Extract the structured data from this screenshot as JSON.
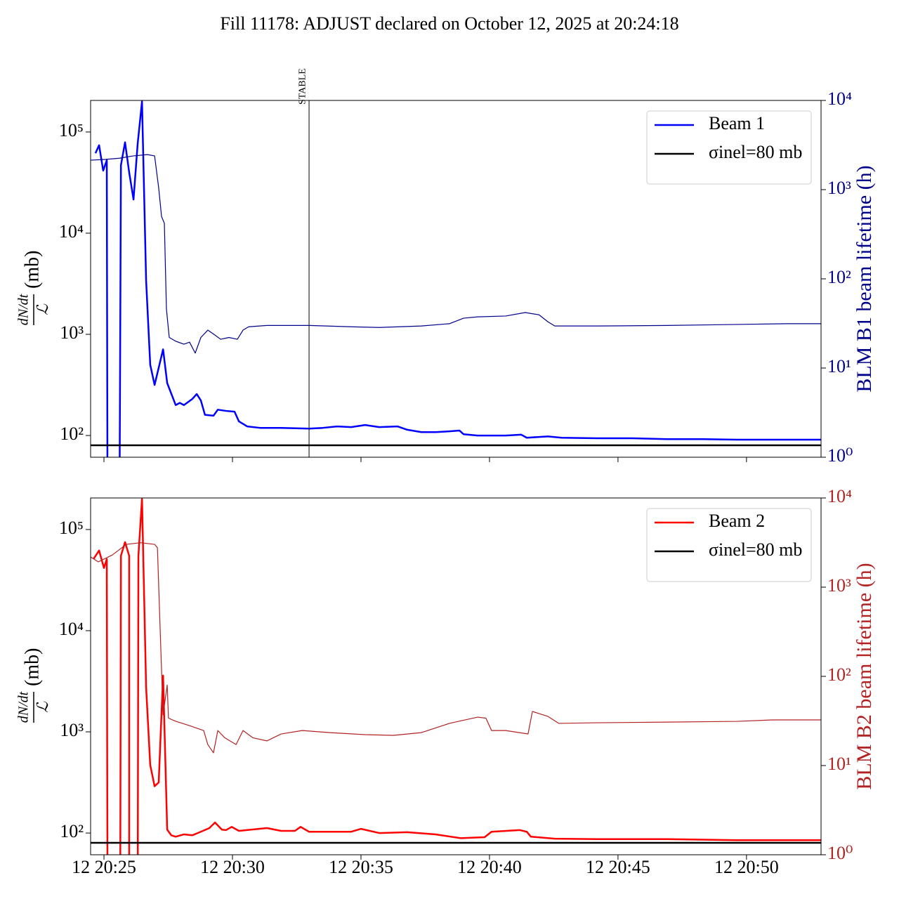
{
  "title": "Fill 11178: ADJUST declared on October 12, 2025 at 20:24:18",
  "chart_data": [
    {
      "type": "line",
      "ylabel": {
        "numerator": "dN/dt",
        "denominator": "ℒ",
        "unit": "(mb)"
      },
      "y2label": "BLM B1 beam lifetime (h)",
      "y2color": "#00008b",
      "xlim": [
        24.48,
        52.9
      ],
      "xticks": [
        25,
        30,
        35,
        40,
        45,
        50
      ],
      "xticklabels": false,
      "ylim": [
        61,
        205000
      ],
      "ylog": true,
      "yticks": [
        {
          "value": 100,
          "label": "10²"
        },
        {
          "value": 1000,
          "label": "10³"
        },
        {
          "value": 10000,
          "label": "10⁴"
        },
        {
          "value": 100000,
          "label": "10⁵"
        }
      ],
      "y2lim": [
        1,
        10000
      ],
      "y2log": true,
      "y2ticks": [
        {
          "value": 1,
          "label": "10⁰"
        },
        {
          "value": 10,
          "label": "10¹"
        },
        {
          "value": 100,
          "label": "10²"
        },
        {
          "value": 1000,
          "label": "10³"
        },
        {
          "value": 10000,
          "label": "10⁴"
        }
      ],
      "legend": "upper right",
      "annotations": [
        {
          "text": "STABLE",
          "x": 32.98
        }
      ],
      "reference": {
        "name": "σinel=80 mb",
        "value": 80,
        "color": "#000000"
      },
      "series": [
        {
          "name": "Beam 1",
          "color": "#0000ff",
          "x": [
            24.67,
            24.81,
            24.97,
            25.11,
            25.14,
            25.6,
            25.66,
            25.82,
            25.98,
            26.15,
            26.31,
            26.48,
            26.64,
            26.8,
            26.97,
            27.3,
            27.46,
            27.79,
            27.95,
            28.11,
            28.44,
            28.61,
            28.77,
            28.93,
            29.26,
            29.43,
            29.75,
            30.08,
            30.25,
            30.57,
            31.07,
            31.89,
            32.98,
            33.52,
            34.07,
            34.62,
            35.16,
            35.71,
            36.42,
            36.8,
            37.35,
            37.9,
            38.44,
            38.83,
            38.99,
            39.54,
            40.63,
            41.23,
            41.45,
            42.27,
            42.81,
            44.18,
            45.55,
            46.91,
            48.28,
            49.64,
            51.01,
            52.9
          ],
          "values": [
            61700,
            74000,
            41500,
            52500,
            10,
            10,
            47000,
            79000,
            40000,
            21500,
            76000,
            200000,
            3400,
            500,
            316,
            710,
            330,
            200,
            210,
            200,
            230,
            257,
            222,
            160,
            157,
            180,
            175,
            172,
            138,
            123,
            119,
            119,
            117,
            119,
            123,
            121,
            127,
            121,
            123,
            114,
            108,
            108,
            110,
            112,
            103,
            100,
            100,
            102,
            95,
            98,
            95,
            94,
            94,
            92,
            92,
            91,
            91,
            91
          ]
        },
        {
          "axis": "y2",
          "color": "#00008b",
          "x": [
            24.48,
            25.05,
            25.6,
            26.15,
            26.69,
            26.97,
            27.13,
            27.24,
            27.35,
            27.43,
            27.54,
            27.79,
            28.11,
            28.33,
            28.55,
            28.77,
            29.04,
            29.32,
            29.54,
            29.86,
            30.19,
            30.41,
            30.63,
            31.34,
            32.98,
            34.62,
            35.71,
            37.35,
            38.44,
            38.99,
            39.54,
            40.63,
            41.39,
            41.93,
            42.27,
            42.54,
            44.18,
            46.91,
            49.64,
            51.56,
            52.9
          ],
          "values": [
            2140,
            2180,
            2250,
            2390,
            2470,
            2390,
            1040,
            500,
            420,
            46,
            22,
            20,
            18.5,
            19.5,
            14.7,
            22,
            26.6,
            23.4,
            21,
            22,
            21,
            26.6,
            29,
            30,
            30,
            29,
            28.5,
            29.6,
            31.4,
            36.2,
            37.5,
            38.3,
            41.9,
            39.5,
            33,
            29.6,
            29.6,
            30,
            30.8,
            31.4,
            31.4
          ]
        }
      ]
    },
    {
      "type": "line",
      "ylabel": {
        "numerator": "dN/dt",
        "denominator": "ℒ",
        "unit": "(mb)"
      },
      "y2label": "BLM B2 beam lifetime (h)",
      "y2color": "#b22222",
      "xlim": [
        24.48,
        52.9
      ],
      "xticks": [
        {
          "value": 25,
          "label": "12 20:25"
        },
        {
          "value": 30,
          "label": "12 20:30"
        },
        {
          "value": 35,
          "label": "12 20:35"
        },
        {
          "value": 40,
          "label": "12 20:40"
        },
        {
          "value": 45,
          "label": "12 20:45"
        },
        {
          "value": 50,
          "label": "12 20:50"
        }
      ],
      "xticklabels": true,
      "ylim": [
        61,
        205000
      ],
      "ylog": true,
      "yticks": [
        {
          "value": 100,
          "label": "10²"
        },
        {
          "value": 1000,
          "label": "10³"
        },
        {
          "value": 10000,
          "label": "10⁴"
        },
        {
          "value": 100000,
          "label": "10⁵"
        }
      ],
      "y2lim": [
        1,
        10000
      ],
      "y2log": true,
      "y2ticks": [
        {
          "value": 1,
          "label": "10⁰"
        },
        {
          "value": 10,
          "label": "10¹"
        },
        {
          "value": 100,
          "label": "10²"
        },
        {
          "value": 1000,
          "label": "10³"
        },
        {
          "value": 10000,
          "label": "10⁴"
        }
      ],
      "legend": "upper right",
      "reference": {
        "name": "σinel=80 mb",
        "value": 80,
        "color": "#000000"
      },
      "series": [
        {
          "name": "Beam 2",
          "color": "#ff0000",
          "x": [
            24.59,
            24.81,
            25.0,
            25.11,
            25.14,
            25.63,
            25.66,
            25.82,
            25.98,
            25.98,
            26.31,
            26.34,
            26.48,
            26.64,
            26.8,
            26.97,
            27.13,
            27.3,
            27.46,
            27.62,
            27.79,
            28.11,
            28.44,
            28.77,
            29.1,
            29.32,
            29.59,
            29.75,
            29.97,
            30.25,
            31.34,
            31.89,
            32.43,
            32.65,
            32.98,
            34.62,
            35.0,
            35.71,
            36.8,
            37.9,
            38.88,
            39.81,
            40.08,
            41.17,
            41.45,
            41.61,
            42.54,
            44.18,
            46.91,
            49.64,
            52.9
          ],
          "values": [
            51000,
            62000,
            41700,
            51000,
            10,
            10,
            55000,
            75000,
            55000,
            10,
            10,
            55000,
            200000,
            2750,
            470,
            290,
            316,
            3600,
            108,
            95,
            92,
            97,
            95,
            103,
            112,
            127,
            108,
            107,
            115,
            105,
            112,
            105,
            105,
            115,
            103,
            103,
            110,
            100,
            102,
            97,
            89,
            91,
            103,
            107,
            103,
            92,
            88,
            87,
            87,
            85,
            85
          ]
        },
        {
          "axis": "y2",
          "color": "#b22222",
          "x": [
            24.48,
            24.78,
            25.33,
            25.87,
            26.42,
            26.97,
            27.08,
            27.19,
            27.3,
            27.46,
            27.51,
            27.79,
            28.33,
            28.88,
            29.04,
            29.26,
            29.43,
            29.7,
            30.14,
            30.41,
            30.79,
            31.34,
            31.89,
            32.71,
            33.8,
            35.16,
            36.26,
            37.35,
            38.44,
            39.54,
            39.86,
            40.08,
            40.63,
            41.5,
            41.67,
            42.27,
            42.7,
            44.18,
            46.91,
            49.64,
            51.01,
            52.9
          ],
          "values": [
            2180,
            1920,
            2300,
            3020,
            3150,
            3020,
            2770,
            314,
            37,
            80,
            34,
            31.4,
            28,
            24.7,
            17.2,
            13.9,
            24.7,
            20.5,
            17.2,
            24.7,
            20.5,
            18.9,
            22.6,
            24.7,
            23.4,
            22.2,
            21.8,
            23.4,
            29.7,
            34.9,
            34,
            24.7,
            24.7,
            22.6,
            40.4,
            35.6,
            29.7,
            30.2,
            30.7,
            31.3,
            32.5,
            32.5
          ]
        }
      ]
    }
  ]
}
